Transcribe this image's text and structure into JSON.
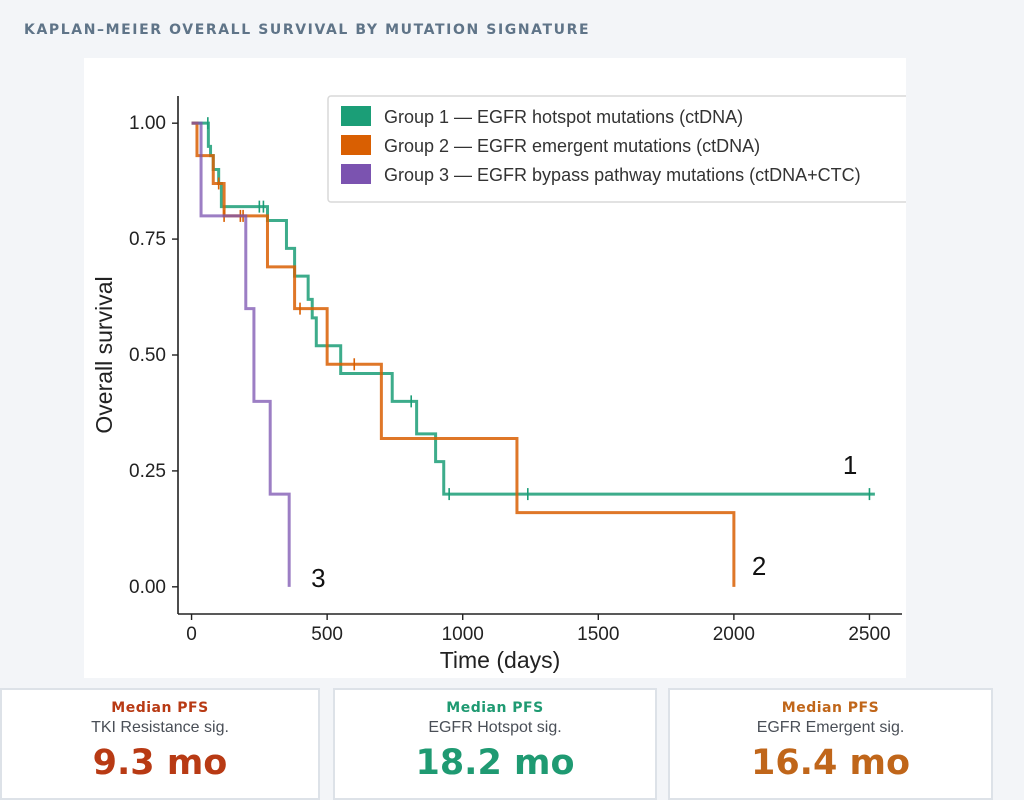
{
  "header": {
    "title": "KAPLAN–MEIER OVERALL SURVIVAL BY MUTATION SIGNATURE"
  },
  "chart_data": {
    "type": "line",
    "subtype": "kaplan-meier step",
    "xlabel": "Time (days)",
    "ylabel": "Overall survival",
    "xlim": [
      -50,
      2620
    ],
    "ylim": [
      -0.05,
      1.05
    ],
    "xticks": [
      0,
      500,
      1000,
      1500,
      2000,
      2500
    ],
    "yticks": [
      0,
      0.25,
      0.5,
      0.75,
      1
    ],
    "ytick_labels": [
      "0.00",
      "0.25",
      "0.50",
      "0.75",
      "1.00"
    ],
    "xtick_labels": [
      "0",
      "500",
      "1000",
      "1500",
      "2000",
      "2500"
    ],
    "grid": false,
    "legend_position": "top-right",
    "series": [
      {
        "name": "Group 1 — EGFR hotspot mutations (ctDNA)",
        "end_label": "1",
        "color": "#1b9e77",
        "steps": [
          [
            0,
            1.0
          ],
          [
            62,
            0.95
          ],
          [
            70,
            0.93
          ],
          [
            80,
            0.9
          ],
          [
            100,
            0.87
          ],
          [
            110,
            0.82
          ],
          [
            280,
            0.79
          ],
          [
            350,
            0.73
          ],
          [
            380,
            0.67
          ],
          [
            430,
            0.62
          ],
          [
            445,
            0.58
          ],
          [
            460,
            0.52
          ],
          [
            550,
            0.46
          ],
          [
            740,
            0.4
          ],
          [
            830,
            0.33
          ],
          [
            900,
            0.27
          ],
          [
            930,
            0.2
          ],
          [
            2520,
            0.2
          ]
        ],
        "censored": [
          [
            60,
            1.0
          ],
          [
            250,
            0.82
          ],
          [
            265,
            0.82
          ],
          [
            810,
            0.4
          ],
          [
            950,
            0.2
          ],
          [
            1240,
            0.2
          ],
          [
            2500,
            0.2
          ]
        ]
      },
      {
        "name": "Group 2 — EGFR emergent mutations (ctDNA)",
        "end_label": "2",
        "color": "#d95f02",
        "steps": [
          [
            0,
            1.0
          ],
          [
            20,
            0.93
          ],
          [
            80,
            0.87
          ],
          [
            120,
            0.8
          ],
          [
            280,
            0.69
          ],
          [
            380,
            0.6
          ],
          [
            500,
            0.48
          ],
          [
            700,
            0.32
          ],
          [
            1200,
            0.16
          ],
          [
            2000,
            0.16
          ],
          [
            2000,
            0.0
          ]
        ],
        "censored": [
          [
            100,
            0.87
          ],
          [
            120,
            0.8
          ],
          [
            180,
            0.8
          ],
          [
            190,
            0.8
          ],
          [
            400,
            0.6
          ],
          [
            600,
            0.48
          ]
        ]
      },
      {
        "name": "Group 3 — EGFR bypass pathway mutations (ctDNA+CTC)",
        "end_label": "3",
        "color": "#7b53b0",
        "steps": [
          [
            0,
            1.0
          ],
          [
            35,
            0.8
          ],
          [
            200,
            0.6
          ],
          [
            230,
            0.4
          ],
          [
            290,
            0.2
          ],
          [
            360,
            0.0
          ]
        ],
        "censored": []
      }
    ]
  },
  "stats": [
    {
      "label": "Median PFS",
      "sub": "TKI Resistance sig.",
      "value": "9.3 mo",
      "color": "#b83a14"
    },
    {
      "label": "Median PFS",
      "sub": "EGFR Hotspot sig.",
      "value": "18.2 mo",
      "color": "#1f9a72"
    },
    {
      "label": "Median PFS",
      "sub": "EGFR Emergent sig.",
      "value": "16.4 mo",
      "color": "#c0661a"
    }
  ]
}
